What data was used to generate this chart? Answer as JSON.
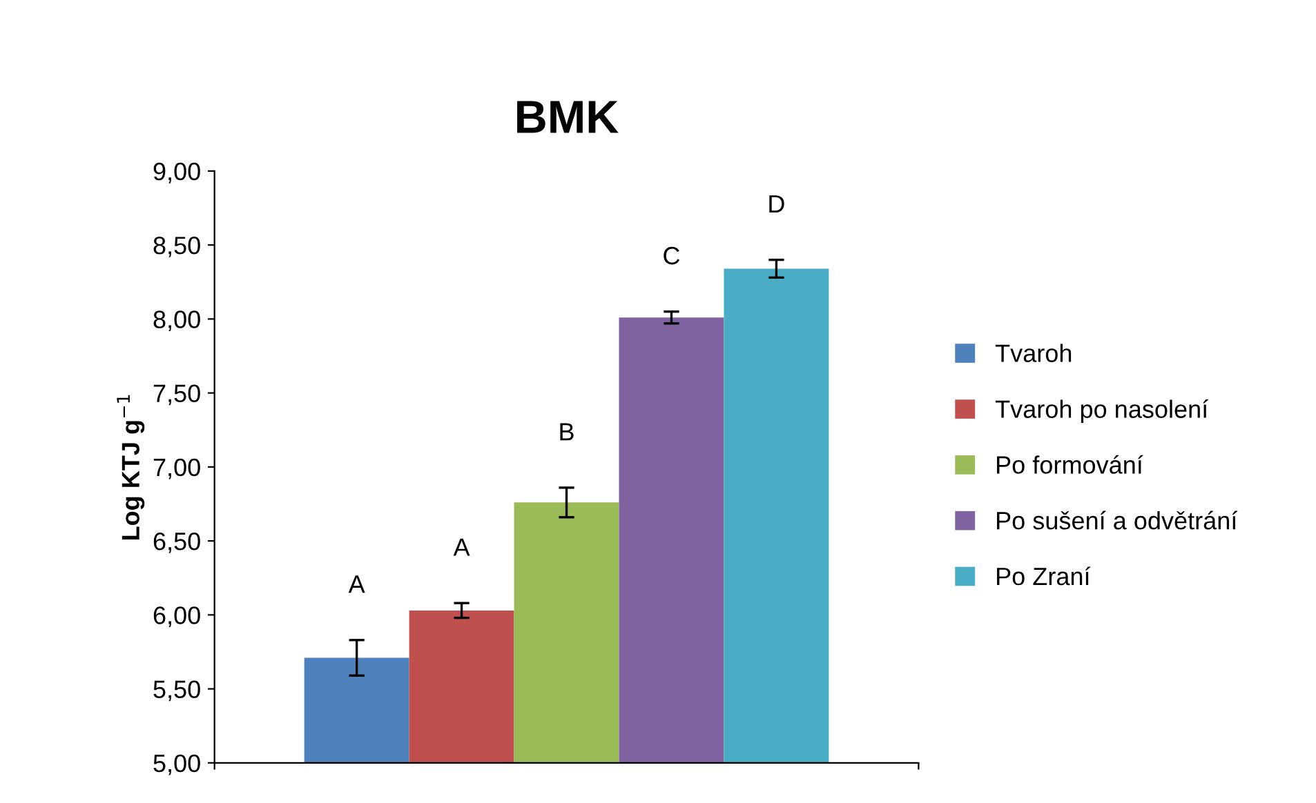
{
  "chart_data": {
    "type": "bar",
    "title": "BMK",
    "ylabel": "Log KTJ g$^{−1}$",
    "categories": [
      null
    ],
    "series": [
      {
        "name": "Tvaroh",
        "color": "#4f81bd",
        "values": [
          5.71
        ],
        "errors": [
          0.12
        ]
      },
      {
        "name": "Tvaroh po nasolení",
        "color": "#c0504d",
        "values": [
          6.03
        ],
        "errors": [
          0.05
        ]
      },
      {
        "name": "Po formování",
        "color": "#9bbb59",
        "values": [
          6.76
        ],
        "errors": [
          0.1
        ]
      },
      {
        "name": "Po sušení a odvětrání",
        "color": "#8064a2",
        "values": [
          8.01
        ],
        "errors": [
          0.04
        ]
      },
      {
        "name": "Po Zraní",
        "color": "#4bacc6",
        "values": [
          8.34
        ],
        "errors": [
          0.06
        ]
      }
    ],
    "annotations": [
      "A",
      "A",
      "B",
      "C",
      "D"
    ],
    "ylim": [
      5,
      9
    ],
    "yticks": [
      {
        "value": 5,
        "label": "5,00"
      },
      {
        "value": 5.5,
        "label": "5,50"
      },
      {
        "value": 6,
        "label": "6,00"
      },
      {
        "value": 6.5,
        "label": "6,50"
      },
      {
        "value": 7,
        "label": "7,00"
      },
      {
        "value": 7.5,
        "label": "7,50"
      },
      {
        "value": 8,
        "label": "8,00"
      },
      {
        "value": 8.5,
        "label": "8,50"
      },
      {
        "value": 9,
        "label": "9,00"
      }
    ],
    "tick_labels": "y",
    "grid": false,
    "legend": "right"
  }
}
